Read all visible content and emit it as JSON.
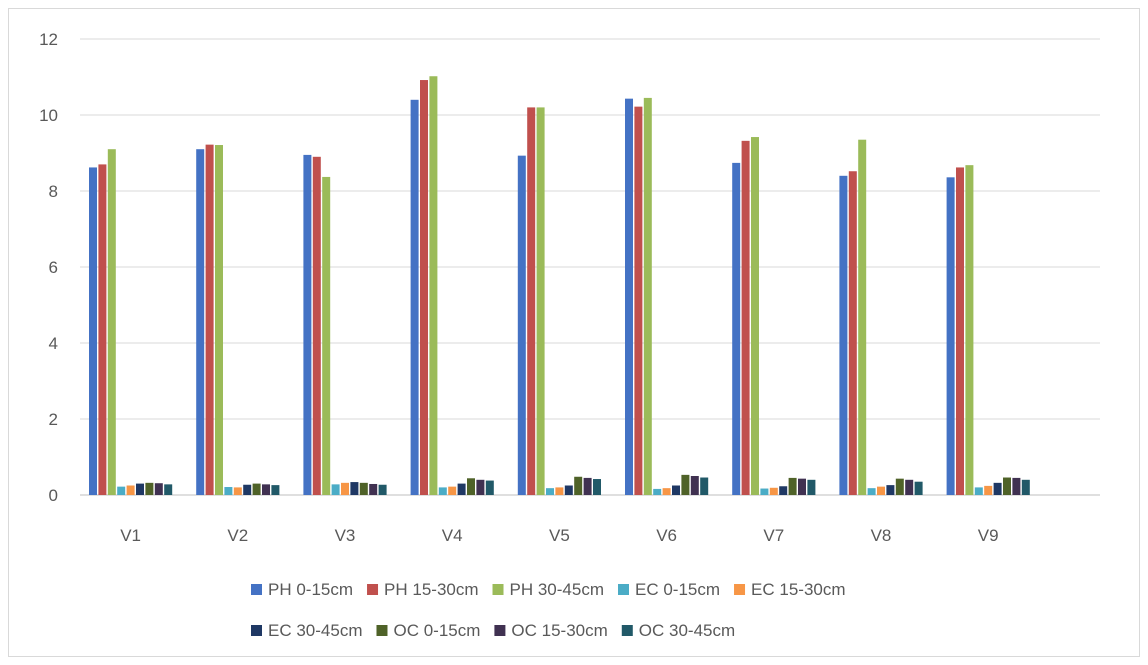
{
  "chart_data": {
    "type": "bar",
    "title": "",
    "xlabel": "",
    "ylabel": "",
    "ylim": [
      0,
      12
    ],
    "yticks": [
      0,
      2,
      4,
      6,
      8,
      10,
      12
    ],
    "grid": true,
    "legend_position": "bottom",
    "categories": [
      "V1",
      "V2",
      "V3",
      "V4",
      "V5",
      "V6",
      "V7",
      "V8",
      "V9"
    ],
    "series": [
      {
        "name": "PH 0-15cm",
        "color": "#4472c4",
        "values": [
          8.62,
          9.1,
          8.95,
          10.4,
          8.93,
          10.43,
          8.74,
          8.4,
          8.36
        ]
      },
      {
        "name": "PH 15-30cm",
        "color": "#c0504d",
        "values": [
          8.7,
          9.22,
          8.9,
          10.92,
          10.2,
          10.22,
          9.32,
          8.52,
          8.62
        ]
      },
      {
        "name": "PH 30-45cm",
        "color": "#9bbb59",
        "values": [
          9.1,
          9.21,
          8.37,
          11.02,
          10.2,
          10.45,
          9.42,
          9.35,
          8.68
        ]
      },
      {
        "name": "EC 0-15cm",
        "color": "#4bacc6",
        "values": [
          0.22,
          0.21,
          0.28,
          0.2,
          0.18,
          0.16,
          0.17,
          0.18,
          0.2
        ]
      },
      {
        "name": "EC 15-30cm",
        "color": "#f79646",
        "values": [
          0.25,
          0.2,
          0.32,
          0.22,
          0.2,
          0.18,
          0.19,
          0.22,
          0.24
        ]
      },
      {
        "name": "EC 30-45cm",
        "color": "#1f3864",
        "values": [
          0.3,
          0.27,
          0.34,
          0.3,
          0.25,
          0.25,
          0.23,
          0.26,
          0.32
        ]
      },
      {
        "name": "OC 0-15cm",
        "color": "#4f6228",
        "values": [
          0.32,
          0.3,
          0.32,
          0.44,
          0.48,
          0.53,
          0.45,
          0.43,
          0.46
        ]
      },
      {
        "name": "OC 15-30cm",
        "color": "#403151",
        "values": [
          0.31,
          0.28,
          0.29,
          0.4,
          0.45,
          0.5,
          0.43,
          0.4,
          0.45
        ]
      },
      {
        "name": "OC 30-45cm",
        "color": "#215968",
        "values": [
          0.28,
          0.26,
          0.27,
          0.38,
          0.42,
          0.46,
          0.4,
          0.35,
          0.4
        ]
      }
    ]
  }
}
